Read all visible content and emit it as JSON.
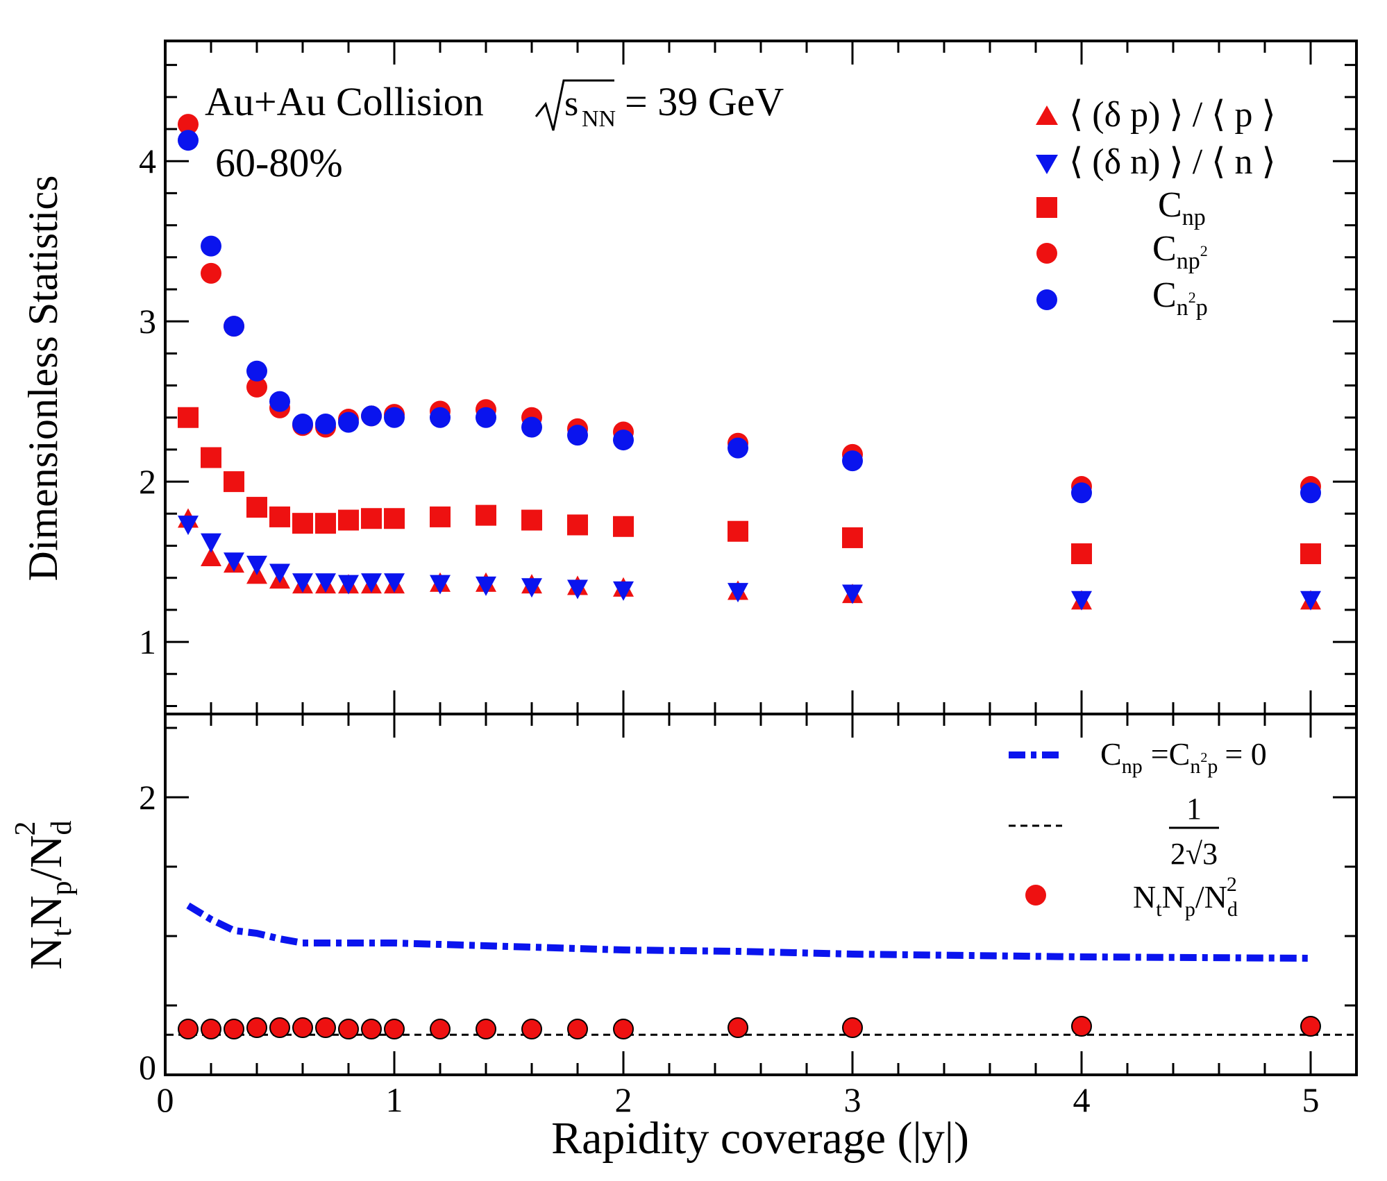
{
  "chart_data": [
    {
      "panel": "top",
      "type": "scatter",
      "title": "Au+Au Collision",
      "energy_label": {
        "symbol": "s",
        "subscript": "NN",
        "value_text": "= 39 GeV"
      },
      "centrality": "60-80%",
      "ylabel": "Dimensionless Statistics",
      "xlim": [
        0,
        5.2
      ],
      "ylim": [
        0.55,
        4.75
      ],
      "yticks": [
        1,
        2,
        3,
        4
      ],
      "legend_position": "top-right",
      "x": [
        0.1,
        0.2,
        0.3,
        0.4,
        0.5,
        0.6,
        0.7,
        0.8,
        0.9,
        1.0,
        1.2,
        1.4,
        1.6,
        1.8,
        2.0,
        2.5,
        3.0,
        4.0,
        5.0
      ],
      "series": [
        {
          "legend": "⟨ (δ p) ⟩ / ⟨ p ⟩",
          "marker": "triangle-up",
          "color": "#ee1111",
          "values": [
            1.76,
            1.52,
            1.48,
            1.41,
            1.38,
            1.35,
            1.35,
            1.35,
            1.35,
            1.35,
            1.36,
            1.36,
            1.35,
            1.34,
            1.33,
            1.31,
            1.29,
            1.25,
            1.25
          ]
        },
        {
          "legend": "⟨ (δ n) ⟩ / ⟨ n ⟩",
          "marker": "triangle-down",
          "color": "#0a14ee",
          "values": [
            1.74,
            1.63,
            1.51,
            1.49,
            1.44,
            1.38,
            1.38,
            1.37,
            1.38,
            1.38,
            1.37,
            1.36,
            1.35,
            1.34,
            1.33,
            1.32,
            1.31,
            1.27,
            1.27
          ]
        },
        {
          "legend": "C",
          "legend_sub": "np",
          "marker": "square",
          "color": "#ee1111",
          "values": [
            2.4,
            2.15,
            2.0,
            1.84,
            1.78,
            1.74,
            1.74,
            1.76,
            1.77,
            1.77,
            1.78,
            1.79,
            1.76,
            1.73,
            1.72,
            1.69,
            1.65,
            1.55,
            1.55
          ]
        },
        {
          "legend": "C",
          "legend_sub": "np",
          "legend_sup": "2",
          "marker": "circle",
          "color": "#ee1111",
          "values": [
            4.23,
            3.3,
            2.97,
            2.59,
            2.46,
            2.35,
            2.34,
            2.39,
            2.41,
            2.42,
            2.44,
            2.45,
            2.4,
            2.33,
            2.31,
            2.24,
            2.17,
            1.97,
            1.97
          ]
        },
        {
          "legend": "C",
          "legend_sub": "n",
          "legend_sup": "2",
          "legend_sub2": "p",
          "marker": "circle",
          "color": "#0a14ee",
          "values": [
            4.13,
            3.47,
            2.97,
            2.69,
            2.5,
            2.36,
            2.36,
            2.37,
            2.41,
            2.4,
            2.4,
            2.4,
            2.34,
            2.29,
            2.26,
            2.21,
            2.13,
            1.93,
            1.93
          ]
        }
      ]
    },
    {
      "panel": "bottom",
      "type": "line",
      "ylabel": "N_t N_p / N_d^2",
      "xlabel": "Rapidity coverage (|y|)",
      "xlim": [
        0,
        5.2
      ],
      "ylim": [
        0,
        2.6
      ],
      "xticks": [
        0,
        1,
        2,
        3,
        4,
        5
      ],
      "yticks": [
        0,
        2
      ],
      "legend_position": "top-right",
      "x": [
        0.1,
        0.2,
        0.3,
        0.4,
        0.5,
        0.6,
        0.7,
        0.8,
        0.9,
        1.0,
        1.2,
        1.4,
        1.6,
        1.8,
        2.0,
        2.5,
        3.0,
        4.0,
        5.0
      ],
      "series": [
        {
          "legend_text": "=C",
          "legend_tail": "= 0",
          "style": "dash-dot",
          "color": "#0a14ee",
          "values": [
            1.22,
            1.12,
            1.04,
            1.02,
            0.98,
            0.95,
            0.95,
            0.95,
            0.95,
            0.95,
            0.94,
            0.93,
            0.92,
            0.91,
            0.9,
            0.89,
            0.87,
            0.85,
            0.84
          ]
        },
        {
          "legend_frac_num": "1",
          "legend_frac_den": "2√3",
          "style": "dashed",
          "color": "#000000",
          "constant": 0.2887
        },
        {
          "legend_text": "N_t N_p / N_d^2",
          "marker": "circle",
          "color": "#ee1111",
          "values": [
            0.33,
            0.33,
            0.33,
            0.34,
            0.34,
            0.34,
            0.34,
            0.33,
            0.33,
            0.33,
            0.33,
            0.33,
            0.33,
            0.33,
            0.33,
            0.34,
            0.34,
            0.35,
            0.35
          ]
        }
      ]
    }
  ]
}
